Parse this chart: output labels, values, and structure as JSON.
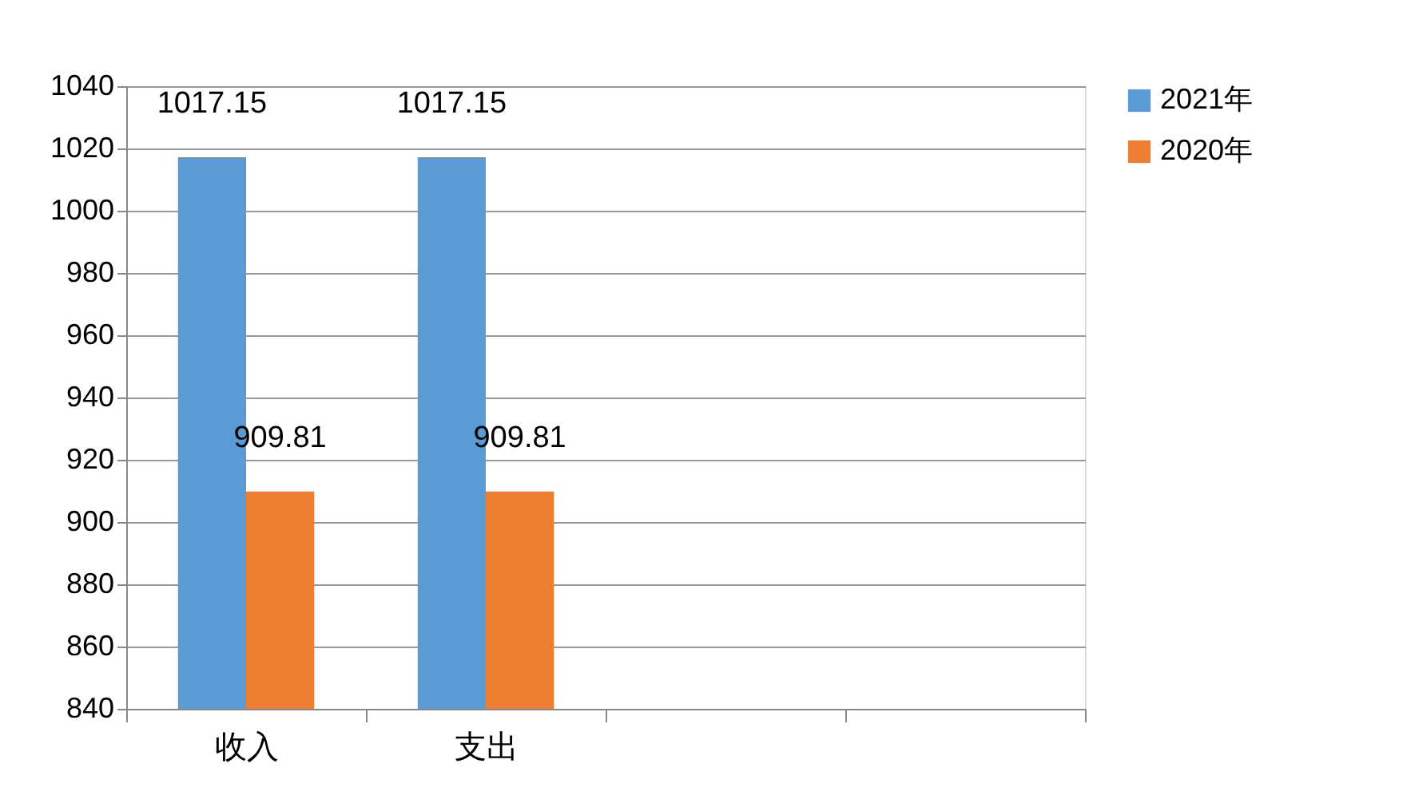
{
  "chart_data": {
    "type": "bar",
    "categories": [
      "收入",
      "支出",
      null,
      null
    ],
    "series": [
      {
        "name": "2021年",
        "color": "#5b9bd5",
        "values": [
          1017.15,
          1017.15,
          null,
          null
        ]
      },
      {
        "name": "2020年",
        "color": "#ed7d31",
        "values": [
          909.81,
          909.81,
          null,
          null
        ]
      }
    ],
    "ylim": [
      840,
      1040
    ],
    "yticks": [
      840,
      860,
      880,
      900,
      920,
      940,
      960,
      980,
      1000,
      1020,
      1040
    ],
    "grid": "y",
    "legend": "right",
    "data_labels": true
  }
}
